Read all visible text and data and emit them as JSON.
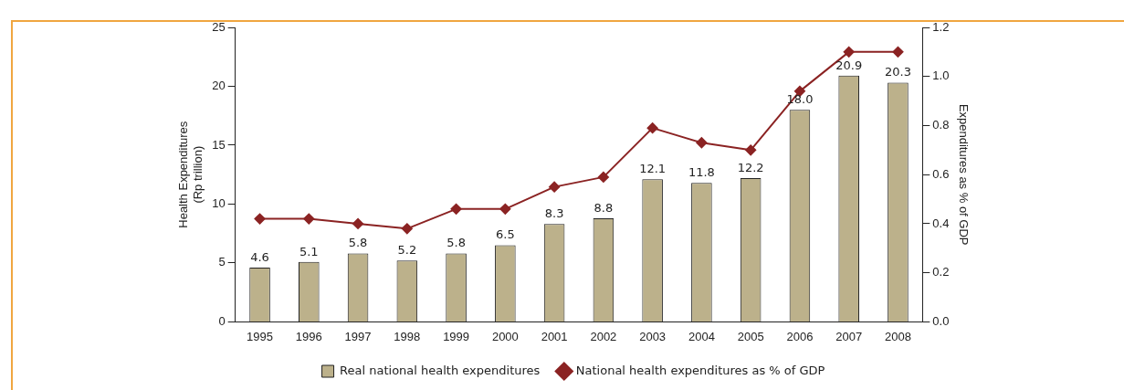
{
  "chart_data": {
    "type": "bar",
    "ylabel": "Health Expenditures\n(Rp trillion)",
    "y2label": "Expenditures as % of GDP",
    "categories": [
      "1995",
      "1996",
      "1997",
      "1998",
      "1999",
      "2000",
      "2001",
      "2002",
      "2003",
      "2004",
      "2005",
      "2006",
      "2007",
      "2008"
    ],
    "series": [
      {
        "name": "Real national health expenditures",
        "color": "#bcb18b",
        "values": [
          4.6,
          5.1,
          5.8,
          5.2,
          5.8,
          6.5,
          8.3,
          8.8,
          12.1,
          11.8,
          12.2,
          18.0,
          20.9,
          20.3
        ],
        "value_labels": [
          "4.6",
          "5.1",
          "5.8",
          "5.2",
          "5.8",
          "6.5",
          "8.3",
          "8.8",
          "12.1",
          "11.8",
          "12.2",
          "18.0",
          "20.9",
          "20.3"
        ]
      },
      {
        "name": "National health expenditures as % of GDP",
        "type": "line",
        "axis": "y2",
        "color": "#8b2323",
        "marker": "diamond",
        "line_style": "solid",
        "values": [
          0.42,
          0.42,
          0.4,
          0.38,
          0.46,
          0.46,
          0.55,
          0.59,
          0.79,
          0.73,
          0.7,
          0.94,
          1.1,
          1.1
        ]
      }
    ],
    "ylim": [
      0,
      25
    ],
    "yticks": [
      0,
      5,
      10,
      15,
      20,
      25
    ],
    "y2lim": [
      0,
      1.2
    ],
    "y2ticks": [
      {
        "value": 0,
        "label": "0.0"
      },
      {
        "value": 0.2,
        "label": "0.2"
      },
      {
        "value": 0.4,
        "label": "0.4"
      },
      {
        "value": 0.6,
        "label": "0.6"
      },
      {
        "value": 0.8,
        "label": "0.8"
      },
      {
        "value": 1,
        "label": "1.0"
      },
      {
        "value": 1.2,
        "label": "1.2"
      }
    ],
    "grid": false,
    "legend": "bottom"
  }
}
